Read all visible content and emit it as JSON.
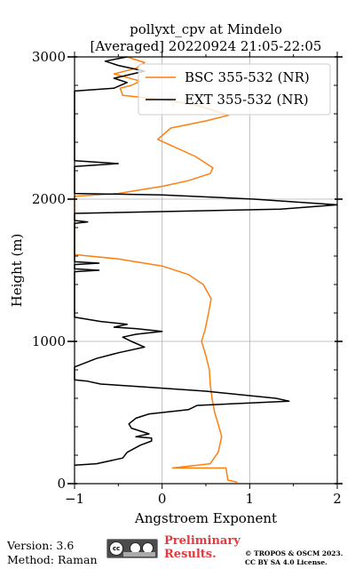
{
  "chart_data": {
    "type": "line",
    "title_line1": "pollyxt_cpv at Mindelo",
    "title_line2": "[Averaged] 20220924 21:05-22:05",
    "xlabel": "Angstroem Exponent",
    "ylabel": "Height (m)",
    "xlim": [
      -1,
      2
    ],
    "ylim": [
      0,
      3000
    ],
    "x_ticks": [
      -1,
      0,
      1,
      2
    ],
    "x_tick_labels": [
      "−1",
      "0",
      "1",
      "2"
    ],
    "y_ticks": [
      0,
      1000,
      2000,
      3000
    ],
    "y_tick_labels": [
      "0",
      "1000",
      "2000",
      "3000"
    ],
    "grid": true,
    "legend_position": "top-right",
    "series": [
      {
        "name": "BSC 355-532 (NR)",
        "color": "#ff7f0e",
        "points": [
          [
            0.86,
            10
          ],
          [
            0.75,
            25
          ],
          [
            0.73,
            110
          ],
          [
            0.12,
            110
          ],
          [
            0.55,
            140
          ],
          [
            0.64,
            220
          ],
          [
            0.68,
            330
          ],
          [
            0.64,
            420
          ],
          [
            0.6,
            500
          ],
          [
            0.57,
            600
          ],
          [
            0.55,
            700
          ],
          [
            0.54,
            800
          ],
          [
            0.5,
            900
          ],
          [
            0.45,
            1000
          ],
          [
            0.49,
            1080
          ],
          [
            0.53,
            1200
          ],
          [
            0.56,
            1300
          ],
          [
            0.47,
            1400
          ],
          [
            0.3,
            1470
          ],
          [
            0.0,
            1530
          ],
          [
            -0.5,
            1580
          ],
          [
            -1.0,
            1610
          ],
          [
            -1.0,
            2020
          ],
          [
            -0.5,
            2040
          ],
          [
            -0.2,
            2070
          ],
          [
            0.0,
            2090
          ],
          [
            0.3,
            2130
          ],
          [
            0.55,
            2180
          ],
          [
            0.58,
            2220
          ],
          [
            0.38,
            2300
          ],
          [
            -0.05,
            2420
          ],
          [
            0.1,
            2500
          ],
          [
            0.5,
            2550
          ],
          [
            0.76,
            2590
          ],
          [
            0.4,
            2660
          ],
          [
            0.0,
            2700
          ],
          [
            -0.45,
            2730
          ],
          [
            -0.48,
            2780
          ],
          [
            -0.35,
            2800
          ],
          [
            -0.25,
            2830
          ],
          [
            -0.55,
            2880
          ],
          [
            -0.3,
            2920
          ],
          [
            -0.2,
            2960
          ],
          [
            -0.4,
            3000
          ]
        ]
      },
      {
        "name": "EXT 355-532 (NR)",
        "color": "#000000",
        "points": [
          [
            -1.0,
            130
          ],
          [
            -0.75,
            140
          ],
          [
            -0.45,
            180
          ],
          [
            -0.4,
            220
          ],
          [
            -0.25,
            270
          ],
          [
            -0.12,
            300
          ],
          [
            -0.12,
            320
          ],
          [
            -0.3,
            330
          ],
          [
            -0.15,
            350
          ],
          [
            -0.35,
            390
          ],
          [
            -0.38,
            420
          ],
          [
            -0.3,
            460
          ],
          [
            -0.15,
            490
          ],
          [
            0.3,
            520
          ],
          [
            0.4,
            550
          ],
          [
            1.45,
            580
          ],
          [
            1.3,
            600
          ],
          [
            0.5,
            650
          ],
          [
            -0.2,
            680
          ],
          [
            -0.7,
            700
          ],
          [
            -0.85,
            720
          ],
          [
            -1.0,
            730
          ],
          [
            -1.0,
            820
          ],
          [
            -0.75,
            880
          ],
          [
            -0.5,
            920
          ],
          [
            -0.2,
            960
          ],
          [
            -0.35,
            1000
          ],
          [
            -0.45,
            1030
          ],
          [
            -0.3,
            1050
          ],
          [
            0.0,
            1070
          ],
          [
            -0.3,
            1090
          ],
          [
            -0.55,
            1100
          ],
          [
            -0.4,
            1120
          ],
          [
            -0.7,
            1140
          ],
          [
            -0.9,
            1160
          ],
          [
            -1.0,
            1170
          ],
          [
            -1.0,
            1490
          ],
          [
            -0.72,
            1500
          ],
          [
            -1.0,
            1510
          ],
          [
            -1.0,
            1540
          ],
          [
            -0.72,
            1550
          ],
          [
            -1.0,
            1560
          ],
          [
            -1.0,
            1830
          ],
          [
            -0.85,
            1840
          ],
          [
            -1.0,
            1850
          ],
          [
            -1.0,
            1900
          ],
          [
            1.35,
            1930
          ],
          [
            2.0,
            1960
          ],
          [
            1.05,
            2000
          ],
          [
            0.0,
            2030
          ],
          [
            -1.0,
            2040
          ],
          [
            -1.0,
            2230
          ],
          [
            -0.5,
            2250
          ],
          [
            -1.0,
            2270
          ],
          [
            -1.0,
            2760
          ],
          [
            -0.55,
            2780
          ],
          [
            -0.4,
            2820
          ],
          [
            -0.55,
            2850
          ],
          [
            -0.2,
            2900
          ],
          [
            -0.5,
            2940
          ],
          [
            -0.65,
            2970
          ],
          [
            -0.4,
            3000
          ]
        ]
      }
    ]
  },
  "footer": {
    "version": "Version: 3.6",
    "method": "Method: Raman",
    "cc_label": "cc",
    "preliminary_line1": "Preliminary",
    "preliminary_line2": "Results.",
    "copyright_line1": "© TROPOS & OSCM 2023.",
    "copyright_line2": "CC BY SA 4.0 License."
  }
}
